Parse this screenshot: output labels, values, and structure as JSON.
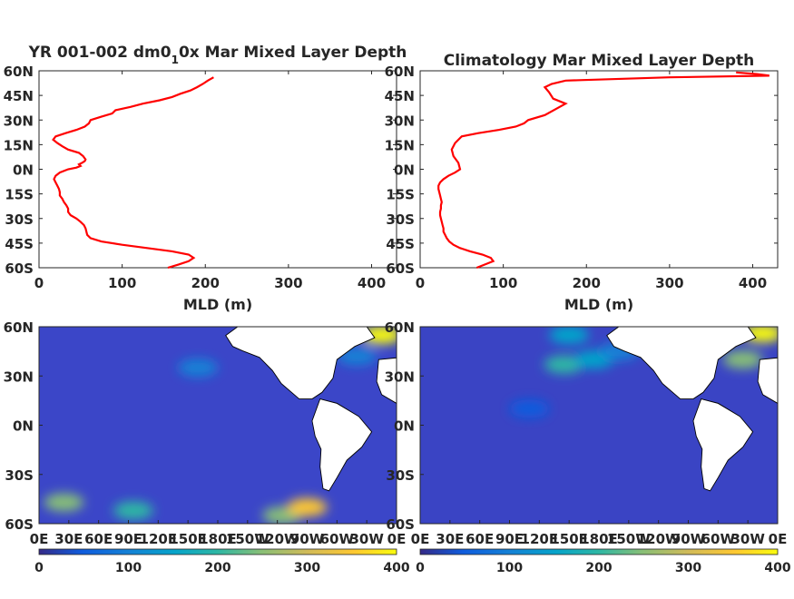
{
  "chart_data": [
    {
      "type": "line",
      "title": "YR 001-002 dm0_1 0x Mar Mixed Layer Depth",
      "title_parts": {
        "pre": "YR 001-002 dm0",
        "sub": "1",
        "post": "0x Mar Mixed Layer Depth"
      },
      "xlabel": "MLD (m)",
      "xlim": [
        0,
        430
      ],
      "ylim": [
        -60,
        60
      ],
      "xticks": [
        "0",
        "100",
        "200",
        "300",
        "400"
      ],
      "yticks": [
        "60N",
        "45N",
        "30N",
        "15N",
        "0N",
        "15S",
        "30S",
        "45S",
        "60S"
      ],
      "series_color": "#ff0000",
      "series": [
        {
          "mld": [
            155,
            168,
            180,
            186,
            180,
            160,
            130,
            100,
            75,
            62,
            58,
            57,
            56,
            54,
            50,
            45,
            38,
            35,
            35,
            33,
            30,
            28,
            25,
            25,
            24,
            22,
            20,
            18,
            20,
            25,
            35,
            45,
            50,
            48,
            52,
            55,
            56,
            53,
            48,
            35,
            28,
            22,
            17,
            20,
            32,
            45,
            55,
            60,
            62,
            75,
            88,
            92,
            110,
            125,
            145,
            160,
            170,
            182,
            190,
            197,
            203,
            210
          ],
          "latitude": [
            -60,
            -58,
            -56,
            -54,
            -52,
            -50,
            -48,
            -46,
            -44,
            -42,
            -40,
            -38,
            -36,
            -34,
            -32,
            -30,
            -28,
            -26,
            -24,
            -22,
            -20,
            -18,
            -16,
            -14,
            -12,
            -10,
            -8,
            -6,
            -4,
            -2,
            0,
            1,
            2,
            3,
            4,
            5,
            6,
            8,
            10,
            12,
            14,
            16,
            18,
            20,
            22,
            24,
            26,
            28,
            30,
            32,
            34,
            36,
            38,
            40,
            42,
            44,
            46,
            48,
            50,
            52,
            54,
            56
          ]
        }
      ]
    },
    {
      "type": "line",
      "title": "Climatology Mar Mixed Layer Depth",
      "xlabel": "MLD (m)",
      "xlim": [
        0,
        430
      ],
      "ylim": [
        -60,
        60
      ],
      "xticks": [
        "0",
        "100",
        "200",
        "300",
        "400"
      ],
      "yticks": [
        "60N",
        "45N",
        "30N",
        "15N",
        "0N",
        "15S",
        "30S",
        "45S",
        "60S"
      ],
      "series_color": "#ff0000",
      "series": [
        {
          "mld": [
            68,
            78,
            88,
            85,
            75,
            60,
            48,
            40,
            35,
            32,
            30,
            28,
            28,
            27,
            26,
            25,
            24,
            24,
            25,
            25,
            26,
            25,
            24,
            23,
            22,
            22,
            24,
            28,
            34,
            42,
            48,
            46,
            40,
            38,
            42,
            50,
            70,
            95,
            115,
            125,
            130,
            150,
            175,
            160,
            155,
            150,
            158,
            175,
            300,
            420,
            405,
            380
          ],
          "latitude": [
            -60,
            -58,
            -56,
            -54,
            -52,
            -50,
            -48,
            -46,
            -44,
            -42,
            -40,
            -38,
            -36,
            -34,
            -32,
            -30,
            -28,
            -26,
            -24,
            -22,
            -20,
            -18,
            -16,
            -14,
            -12,
            -10,
            -8,
            -6,
            -4,
            -2,
            0,
            4,
            8,
            12,
            16,
            20,
            22,
            24,
            26,
            28,
            30,
            33,
            40,
            43,
            47,
            50,
            52,
            54,
            56,
            57,
            58,
            59
          ]
        }
      ]
    },
    {
      "type": "heatmap",
      "variant": "model",
      "xticks": [
        "0E",
        "30E",
        "60E",
        "90E",
        "120E",
        "150E",
        "180E",
        "150W",
        "120W",
        "90W",
        "60W",
        "30W",
        "0E"
      ],
      "yticks": [
        "60N",
        "30N",
        "0N",
        "30S",
        "60S"
      ],
      "colorbar": {
        "ticks": [
          "0",
          "100",
          "200",
          "300",
          "400"
        ],
        "range": [
          0,
          400
        ]
      },
      "hotspots": [
        {
          "lon": 25,
          "lat": -47,
          "value": 230
        },
        {
          "lon": 95,
          "lat": -52,
          "value": 180
        },
        {
          "lon": 245,
          "lat": -55,
          "value": 270
        },
        {
          "lon": 270,
          "lat": -50,
          "value": 330
        },
        {
          "lon": 345,
          "lat": 55,
          "value": 400
        },
        {
          "lon": 320,
          "lat": 42,
          "value": 120
        },
        {
          "lon": 160,
          "lat": 35,
          "value": 110
        }
      ]
    },
    {
      "type": "heatmap",
      "variant": "climatology",
      "xticks": [
        "0E",
        "30E",
        "60E",
        "90E",
        "120E",
        "150E",
        "180E",
        "150W",
        "120W",
        "90W",
        "60W",
        "30W",
        "0E"
      ],
      "yticks": [
        "60N",
        "30N",
        "0N",
        "30S",
        "60S"
      ],
      "colorbar": {
        "ticks": [
          "0",
          "100",
          "200",
          "300",
          "400"
        ],
        "range": [
          0,
          400
        ]
      },
      "hotspots": [
        {
          "lon": 145,
          "lat": 37,
          "value": 190
        },
        {
          "lon": 175,
          "lat": 40,
          "value": 150
        },
        {
          "lon": 200,
          "lat": 45,
          "value": 110
        },
        {
          "lon": 325,
          "lat": 40,
          "value": 230
        },
        {
          "lon": 345,
          "lat": 56,
          "value": 390
        },
        {
          "lon": 150,
          "lat": 55,
          "value": 140
        },
        {
          "lon": 110,
          "lat": 10,
          "value": 70
        }
      ]
    }
  ]
}
